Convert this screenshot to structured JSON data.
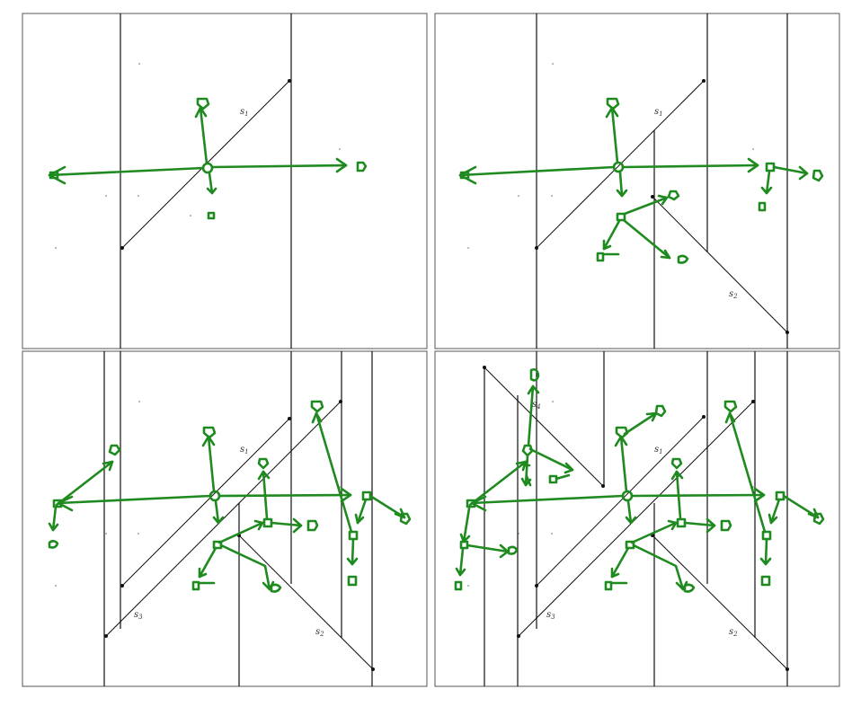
{
  "figure": {
    "panels": [
      {
        "id": "panel-1",
        "labels": [
          {
            "base": "s",
            "sub": "1"
          }
        ]
      },
      {
        "id": "panel-2",
        "labels": [
          {
            "base": "s",
            "sub": "1"
          },
          {
            "base": "s",
            "sub": "2"
          }
        ]
      },
      {
        "id": "panel-3",
        "labels": [
          {
            "base": "s",
            "sub": "1"
          },
          {
            "base": "s",
            "sub": "2"
          },
          {
            "base": "s",
            "sub": "3"
          }
        ]
      },
      {
        "id": "panel-4",
        "labels": [
          {
            "base": "s",
            "sub": "1"
          },
          {
            "base": "s",
            "sub": "2"
          },
          {
            "base": "s",
            "sub": "3"
          },
          {
            "base": "s",
            "sub": "4"
          }
        ]
      }
    ],
    "colors": {
      "annotation": "#1f8a1f",
      "lines": "#111111",
      "frame": "#555555"
    }
  }
}
